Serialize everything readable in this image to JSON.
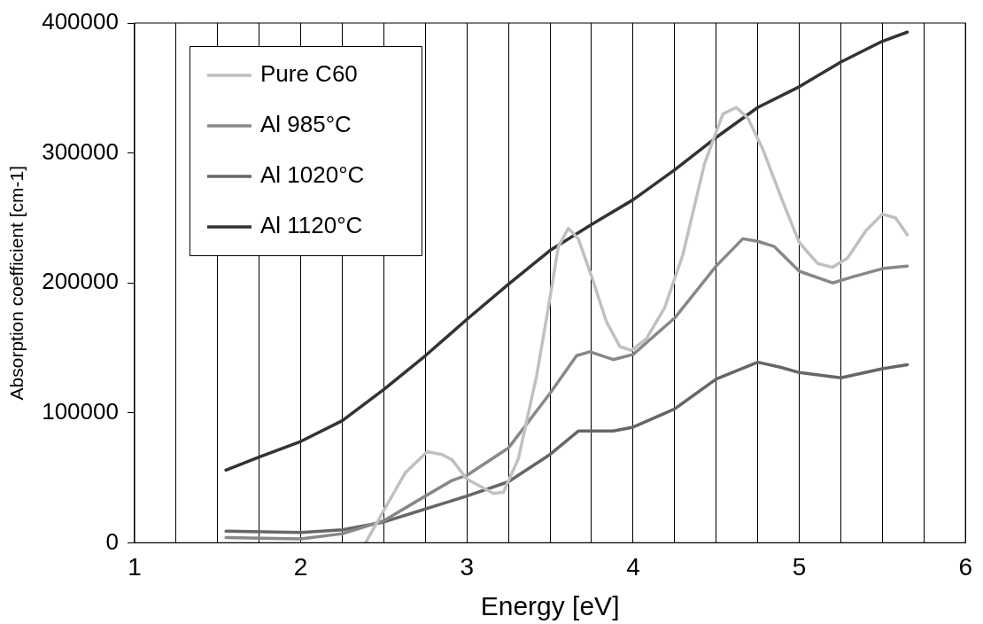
{
  "chart_data": {
    "type": "line",
    "xlabel": "Energy [eV]",
    "ylabel": "Absorption coefficient [cm-1]",
    "xlim": [
      1,
      6
    ],
    "ylim": [
      0,
      400000
    ],
    "xticks": [
      1,
      {
        "value": 1.25,
        "label": null
      },
      {
        "value": 1.5,
        "label": null
      },
      {
        "value": 1.75,
        "label": null
      },
      2,
      {
        "value": 2.25,
        "label": null
      },
      {
        "value": 2.5,
        "label": null
      },
      {
        "value": 2.75,
        "label": null
      },
      3,
      {
        "value": 3.25,
        "label": null
      },
      {
        "value": 3.5,
        "label": null
      },
      {
        "value": 3.75,
        "label": null
      },
      4,
      {
        "value": 4.25,
        "label": null
      },
      {
        "value": 4.5,
        "label": null
      },
      {
        "value": 4.75,
        "label": null
      },
      5,
      {
        "value": 5.25,
        "label": null
      },
      {
        "value": 5.5,
        "label": null
      },
      {
        "value": 5.75,
        "label": null
      },
      6
    ],
    "yticks": [
      0,
      100000,
      200000,
      300000,
      400000
    ],
    "grid": "x",
    "legend": "top left",
    "marker": "none",
    "line_style": "solid",
    "series": [
      {
        "name": "Pure C60",
        "color": "#c0c0c0",
        "x": [
          2.39,
          2.5,
          2.63,
          2.76,
          2.85,
          2.91,
          3.0,
          3.16,
          3.22,
          3.31,
          3.42,
          3.49,
          3.55,
          3.61,
          3.67,
          3.75,
          3.84,
          3.92,
          3.99,
          4.08,
          4.19,
          4.3,
          4.43,
          4.54,
          4.62,
          4.69,
          4.78,
          4.89,
          5.0,
          5.11,
          5.2,
          5.29,
          5.4,
          5.5,
          5.58,
          5.65
        ],
        "values": [
          0,
          25000,
          54000,
          70000,
          68000,
          64000,
          49000,
          38000,
          39000,
          65000,
          129000,
          181000,
          228000,
          242000,
          234000,
          205000,
          170000,
          151000,
          148000,
          157000,
          181000,
          222000,
          292000,
          330000,
          335000,
          327000,
          303000,
          266000,
          231000,
          215000,
          212000,
          219000,
          240000,
          253000,
          250000,
          237000
        ]
      },
      {
        "name": "Al 985°C",
        "color": "#888888",
        "x": [
          1.55,
          2.0,
          2.25,
          2.5,
          2.75,
          2.91,
          3.0,
          3.25,
          3.5,
          3.66,
          3.74,
          3.88,
          4.0,
          4.25,
          4.5,
          4.66,
          4.75,
          4.85,
          5.0,
          5.2,
          5.33,
          5.5,
          5.65
        ],
        "values": [
          4000,
          3000,
          7000,
          17000,
          36000,
          48000,
          52000,
          73000,
          115000,
          144000,
          147000,
          141000,
          145000,
          173000,
          213000,
          234000,
          232000,
          228000,
          209000,
          200000,
          205000,
          211000,
          213000
        ]
      },
      {
        "name": "Al 1020°C",
        "color": "#666666",
        "x": [
          1.55,
          2.0,
          2.25,
          2.5,
          2.75,
          3.0,
          3.25,
          3.5,
          3.67,
          3.88,
          4.0,
          4.25,
          4.5,
          4.75,
          4.89,
          5.0,
          5.25,
          5.5,
          5.65
        ],
        "values": [
          9000,
          8000,
          10000,
          16000,
          26000,
          36000,
          47000,
          68000,
          86000,
          86000,
          89000,
          103000,
          126000,
          139000,
          135000,
          131000,
          127000,
          134000,
          137000
        ]
      },
      {
        "name": "Al 1120°C",
        "color": "#333333",
        "x": [
          1.55,
          1.75,
          2.0,
          2.25,
          2.5,
          2.75,
          3.0,
          3.25,
          3.5,
          3.75,
          4.0,
          4.25,
          4.5,
          4.75,
          5.0,
          5.25,
          5.5,
          5.65
        ],
        "values": [
          56000,
          66000,
          78000,
          94000,
          118000,
          144000,
          172000,
          199000,
          225000,
          245000,
          264000,
          287000,
          312000,
          335000,
          351000,
          370000,
          386000,
          393000
        ]
      }
    ]
  }
}
